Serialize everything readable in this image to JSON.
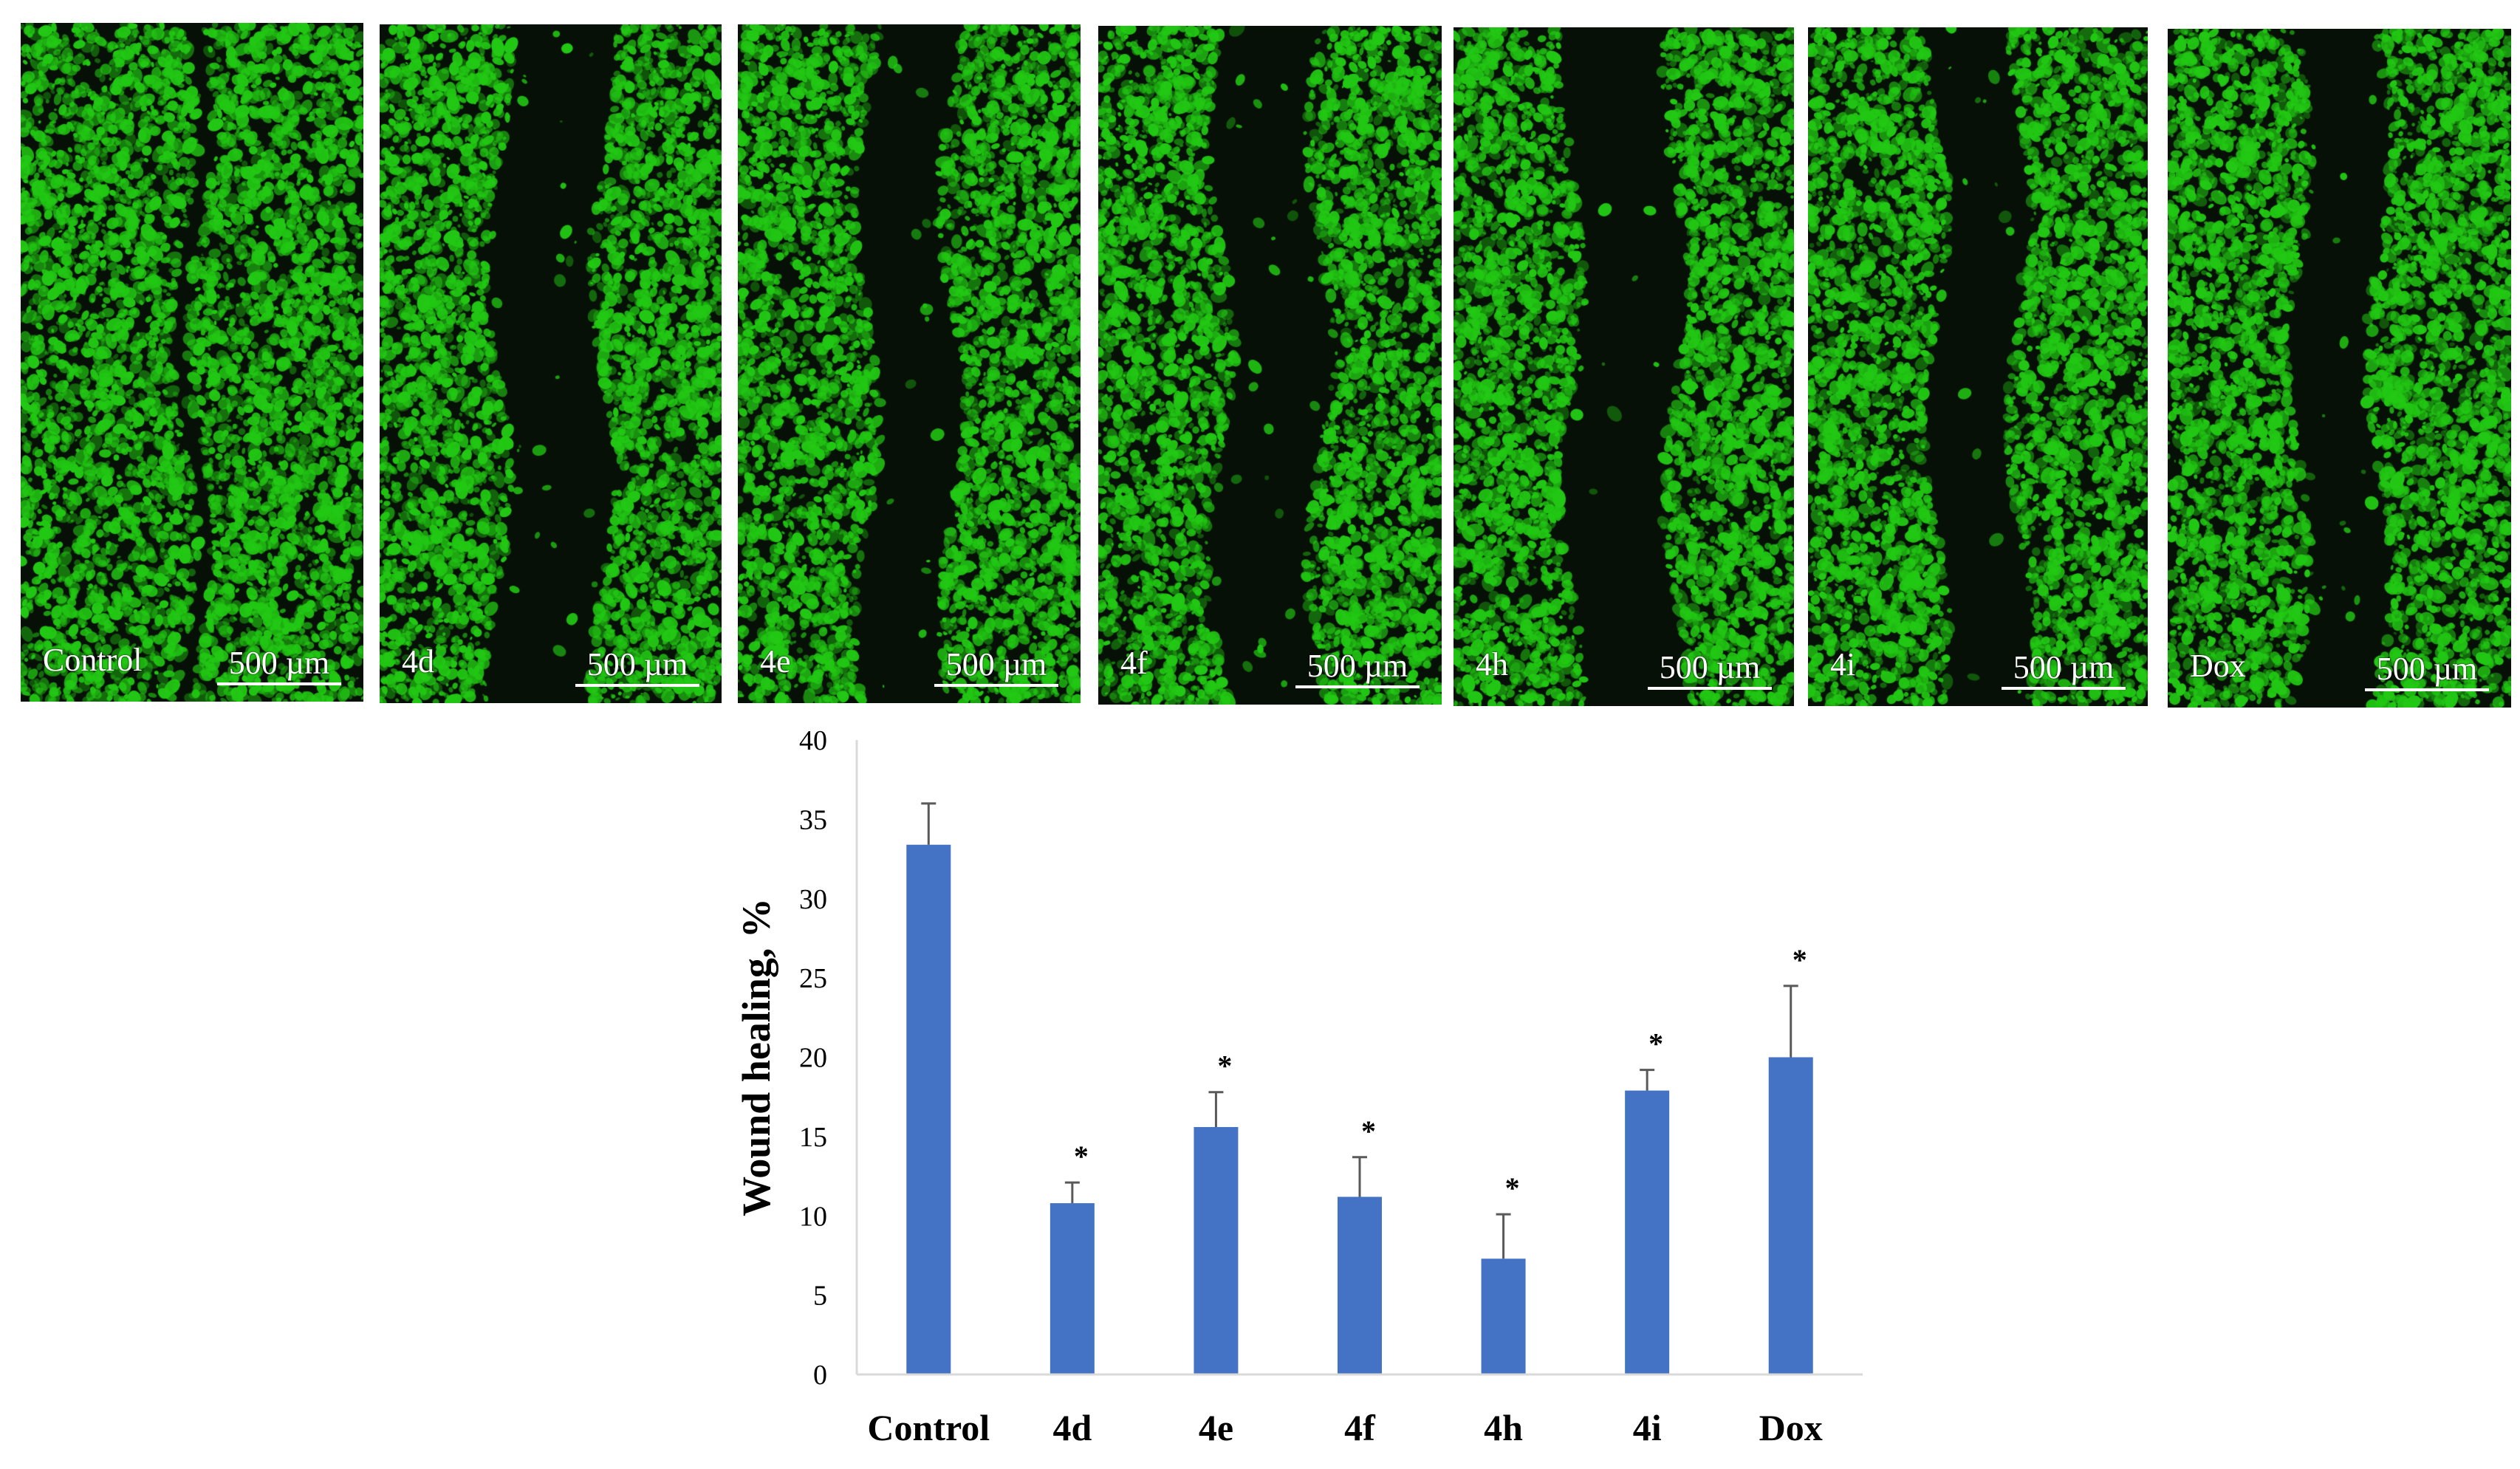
{
  "panels": [
    {
      "label": "Control",
      "scale_label": "500 µm",
      "gap_fraction": 0.04
    },
    {
      "label": "4d",
      "scale_label": "500 µm",
      "gap_fraction": 0.3
    },
    {
      "label": "4e",
      "scale_label": "500 µm",
      "gap_fraction": 0.24
    },
    {
      "label": "4f",
      "scale_label": "500 µm",
      "gap_fraction": 0.28
    },
    {
      "label": "4h",
      "scale_label": "500 µm",
      "gap_fraction": 0.3
    },
    {
      "label": "4i",
      "scale_label": "500 µm",
      "gap_fraction": 0.24
    },
    {
      "label": "Dox",
      "scale_label": "500 µm",
      "gap_fraction": 0.22
    }
  ],
  "colors": {
    "bar": "#4472c4",
    "fluorescence": "#22c814",
    "axis": "#d9d9d9",
    "errorbar": "#595959"
  },
  "chart_data": {
    "type": "bar",
    "categories": [
      "Control",
      "4d",
      "4e",
      "4f",
      "4h",
      "4i",
      "Dox"
    ],
    "values": [
      33.4,
      10.8,
      15.6,
      11.2,
      7.3,
      17.9,
      20.0
    ],
    "errors": [
      2.6,
      1.3,
      2.2,
      2.5,
      2.8,
      1.3,
      4.5
    ],
    "significance": [
      "",
      "*",
      "*",
      "*",
      "*",
      "*",
      "*"
    ],
    "ylabel": "Wound healing, %",
    "ylim": [
      0,
      40
    ],
    "yticks": [
      0,
      5,
      10,
      15,
      20,
      25,
      30,
      35,
      40
    ],
    "grid": false,
    "legend": "none"
  }
}
